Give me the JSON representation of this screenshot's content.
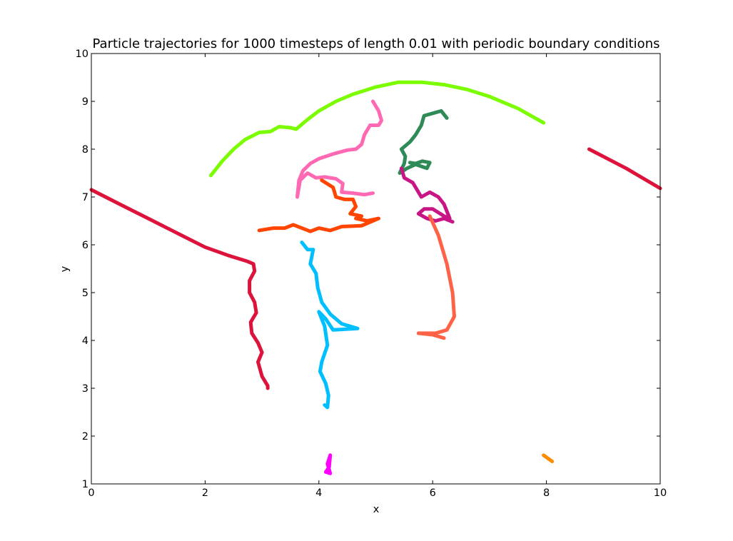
{
  "chart_data": {
    "type": "line",
    "title": "Particle trajectories for 1000 timesteps of length 0.01 with periodic boundary conditions",
    "xlabel": "x",
    "ylabel": "y",
    "xlim": [
      0,
      10
    ],
    "ylim": [
      1,
      10
    ],
    "xticks": [
      "0",
      "2",
      "4",
      "6",
      "8",
      "10"
    ],
    "yticks": [
      "1",
      "2",
      "3",
      "4",
      "5",
      "6",
      "7",
      "8",
      "9",
      "10"
    ],
    "grid": false,
    "legend": "none",
    "series": [
      {
        "color": "#7cfc00",
        "points": [
          [
            2.1,
            7.45
          ],
          [
            2.3,
            7.75
          ],
          [
            2.5,
            8.0
          ],
          [
            2.7,
            8.2
          ],
          [
            2.95,
            8.35
          ],
          [
            3.15,
            8.37
          ],
          [
            3.3,
            8.47
          ],
          [
            3.5,
            8.45
          ],
          [
            3.6,
            8.42
          ],
          [
            3.8,
            8.62
          ],
          [
            4.0,
            8.8
          ],
          [
            4.3,
            9.0
          ],
          [
            4.6,
            9.15
          ],
          [
            5.0,
            9.3
          ],
          [
            5.4,
            9.4
          ],
          [
            5.8,
            9.4
          ],
          [
            6.2,
            9.35
          ],
          [
            6.6,
            9.25
          ],
          [
            7.0,
            9.1
          ],
          [
            7.5,
            8.85
          ],
          [
            7.95,
            8.55
          ]
        ]
      },
      {
        "color": "#dc143c",
        "points": [
          [
            0,
            7.15
          ],
          [
            0.5,
            6.85
          ],
          [
            1.0,
            6.55
          ],
          [
            1.5,
            6.25
          ],
          [
            2.0,
            5.95
          ],
          [
            2.4,
            5.78
          ],
          [
            2.75,
            5.65
          ],
          [
            2.85,
            5.6
          ],
          [
            2.87,
            5.45
          ],
          [
            2.78,
            5.25
          ],
          [
            2.78,
            5.0
          ],
          [
            2.87,
            4.8
          ],
          [
            2.9,
            4.58
          ],
          [
            2.8,
            4.38
          ],
          [
            2.82,
            4.15
          ],
          [
            2.93,
            3.95
          ],
          [
            3.0,
            3.75
          ],
          [
            2.93,
            3.55
          ],
          [
            3.0,
            3.25
          ],
          [
            3.1,
            3.05
          ],
          [
            3.1,
            3.0
          ]
        ]
      },
      {
        "color": "#dc143c",
        "points": [
          [
            8.75,
            8.0
          ],
          [
            9.4,
            7.6
          ],
          [
            10,
            7.18
          ]
        ]
      },
      {
        "color": "#ff69b4",
        "points": [
          [
            4.95,
            9.0
          ],
          [
            5.05,
            8.8
          ],
          [
            5.1,
            8.6
          ],
          [
            5.05,
            8.5
          ],
          [
            4.9,
            8.5
          ],
          [
            4.8,
            8.3
          ],
          [
            4.75,
            8.1
          ],
          [
            4.65,
            8.0
          ],
          [
            4.5,
            7.98
          ],
          [
            4.25,
            7.9
          ],
          [
            4.0,
            7.8
          ],
          [
            3.85,
            7.7
          ],
          [
            3.72,
            7.55
          ],
          [
            3.65,
            7.35
          ],
          [
            3.62,
            7.0
          ],
          [
            3.67,
            7.35
          ],
          [
            3.8,
            7.5
          ],
          [
            3.95,
            7.4
          ],
          [
            4.1,
            7.42
          ],
          [
            4.3,
            7.38
          ],
          [
            4.42,
            7.28
          ],
          [
            4.4,
            7.1
          ],
          [
            4.6,
            7.08
          ],
          [
            4.8,
            7.05
          ],
          [
            4.95,
            7.08
          ]
        ]
      },
      {
        "color": "#ff4500",
        "points": [
          [
            4.05,
            7.35
          ],
          [
            4.25,
            7.2
          ],
          [
            4.3,
            7.0
          ],
          [
            4.45,
            6.95
          ],
          [
            4.6,
            6.95
          ],
          [
            4.65,
            6.8
          ],
          [
            4.55,
            6.65
          ],
          [
            4.75,
            6.6
          ],
          [
            4.65,
            6.55
          ],
          [
            4.85,
            6.5
          ],
          [
            5.05,
            6.55
          ],
          [
            4.75,
            6.4
          ],
          [
            4.4,
            6.38
          ],
          [
            4.2,
            6.3
          ],
          [
            4.0,
            6.35
          ],
          [
            3.85,
            6.28
          ],
          [
            3.7,
            6.35
          ],
          [
            3.55,
            6.42
          ],
          [
            3.4,
            6.35
          ],
          [
            3.2,
            6.35
          ],
          [
            2.95,
            6.3
          ]
        ]
      },
      {
        "color": "#00bfff",
        "points": [
          [
            3.7,
            6.05
          ],
          [
            3.8,
            5.9
          ],
          [
            3.9,
            5.9
          ],
          [
            3.85,
            5.6
          ],
          [
            3.95,
            5.4
          ],
          [
            3.98,
            5.1
          ],
          [
            4.05,
            4.8
          ],
          [
            4.2,
            4.55
          ],
          [
            4.4,
            4.35
          ],
          [
            4.68,
            4.25
          ],
          [
            4.25,
            4.22
          ],
          [
            4.12,
            4.45
          ],
          [
            4.0,
            4.6
          ],
          [
            4.1,
            4.3
          ],
          [
            4.15,
            3.9
          ],
          [
            4.05,
            3.55
          ],
          [
            4.02,
            3.35
          ],
          [
            4.12,
            3.1
          ],
          [
            4.17,
            2.85
          ],
          [
            4.15,
            2.6
          ],
          [
            4.1,
            2.65
          ]
        ]
      },
      {
        "color": "#2e8b57",
        "points": [
          [
            6.25,
            8.65
          ],
          [
            6.15,
            8.8
          ],
          [
            6.0,
            8.75
          ],
          [
            5.85,
            8.7
          ],
          [
            5.8,
            8.5
          ],
          [
            5.7,
            8.3
          ],
          [
            5.6,
            8.15
          ],
          [
            5.5,
            8.05
          ],
          [
            5.45,
            8.0
          ],
          [
            5.52,
            7.85
          ],
          [
            5.5,
            7.7
          ],
          [
            5.42,
            7.5
          ],
          [
            5.55,
            7.6
          ],
          [
            5.7,
            7.68
          ],
          [
            5.9,
            7.6
          ],
          [
            5.95,
            7.72
          ],
          [
            5.82,
            7.75
          ],
          [
            5.7,
            7.7
          ],
          [
            5.6,
            7.72
          ]
        ]
      },
      {
        "color": "#c71585",
        "points": [
          [
            5.45,
            7.6
          ],
          [
            5.5,
            7.4
          ],
          [
            5.65,
            7.3
          ],
          [
            5.8,
            7.0
          ],
          [
            5.95,
            7.1
          ],
          [
            6.1,
            7.0
          ],
          [
            6.2,
            6.85
          ],
          [
            6.25,
            6.7
          ],
          [
            6.3,
            6.55
          ],
          [
            6.2,
            6.6
          ],
          [
            6.0,
            6.75
          ],
          [
            5.85,
            6.75
          ],
          [
            5.75,
            6.65
          ],
          [
            5.9,
            6.55
          ],
          [
            6.05,
            6.5
          ],
          [
            6.2,
            6.55
          ],
          [
            6.35,
            6.48
          ]
        ]
      },
      {
        "color": "#ff6347",
        "points": [
          [
            5.95,
            6.6
          ],
          [
            6.1,
            6.2
          ],
          [
            6.25,
            5.6
          ],
          [
            6.35,
            5.0
          ],
          [
            6.38,
            4.5
          ],
          [
            6.25,
            4.22
          ],
          [
            6.05,
            4.15
          ],
          [
            5.75,
            4.15
          ],
          [
            6.0,
            4.12
          ],
          [
            6.2,
            4.05
          ]
        ]
      },
      {
        "color": "#ff00ff",
        "points": [
          [
            4.2,
            1.6
          ],
          [
            4.18,
            1.35
          ],
          [
            4.12,
            1.25
          ],
          [
            4.2,
            1.22
          ],
          [
            4.15,
            1.42
          ],
          [
            4.2,
            1.6
          ]
        ]
      },
      {
        "color": "#ff8c00",
        "points": [
          [
            7.95,
            1.6
          ],
          [
            8.1,
            1.47
          ]
        ]
      }
    ]
  }
}
